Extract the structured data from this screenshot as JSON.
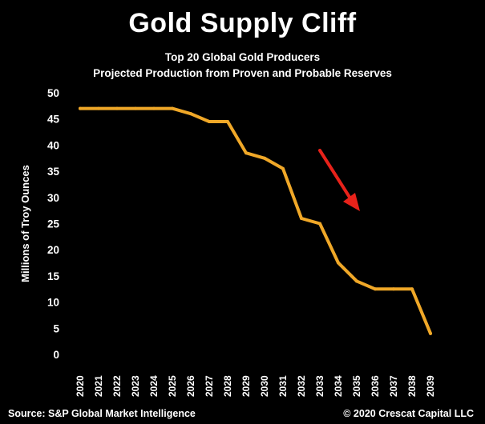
{
  "chart_data": {
    "type": "line",
    "title": "Gold Supply Cliff",
    "subtitle": [
      "Top 20 Global Gold Producers",
      "Projected Production from Proven and Probable Reserves"
    ],
    "xlabel": "",
    "ylabel": "Millions of Troy Ounces",
    "ylim": [
      0,
      50
    ],
    "yticks": [
      0,
      5,
      10,
      15,
      20,
      25,
      30,
      35,
      40,
      45,
      50
    ],
    "categories": [
      "2020",
      "2021",
      "2022",
      "2023",
      "2024",
      "2025",
      "2026",
      "2027",
      "2028",
      "2029",
      "2030",
      "2031",
      "2032",
      "2033",
      "2034",
      "2035",
      "2036",
      "2037",
      "2038",
      "2039"
    ],
    "series": [
      {
        "values": [
          47,
          47,
          47,
          47,
          47,
          47,
          46,
          44.5,
          44.5,
          38.5,
          37.5,
          35.5,
          26,
          25,
          17.5,
          14,
          12.5,
          12.5,
          12.5,
          4
        ],
        "color": "#f0a828"
      }
    ],
    "annotations": [
      {
        "type": "arrow",
        "color": "#e8221a"
      }
    ],
    "grid": false,
    "legend": "none"
  },
  "footer": {
    "source": "Source: S&P Global Market Intelligence",
    "copyright": "© 2020 Crescat Capital LLC"
  }
}
